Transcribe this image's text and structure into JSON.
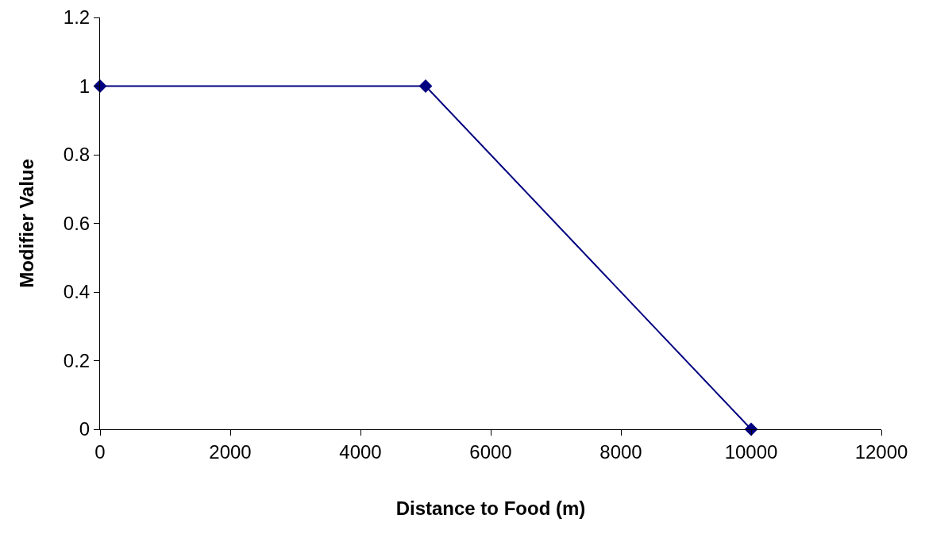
{
  "chart_data": {
    "type": "line",
    "xlabel": "Distance to Food (m)",
    "ylabel": "Modifier Value",
    "x": [
      0,
      5000,
      10000
    ],
    "series": [
      {
        "color": "#000080",
        "values": [
          1,
          1,
          0
        ]
      }
    ],
    "xlim": [
      0,
      12000
    ],
    "xticks": [
      0,
      2000,
      4000,
      6000,
      8000,
      10000,
      12000
    ],
    "ylim": [
      0,
      1.2
    ],
    "yticks": [
      0,
      0.2,
      0.4,
      0.6,
      0.8,
      1,
      1.2
    ],
    "grid": false,
    "marker": "diamond",
    "line_style": "solid"
  }
}
